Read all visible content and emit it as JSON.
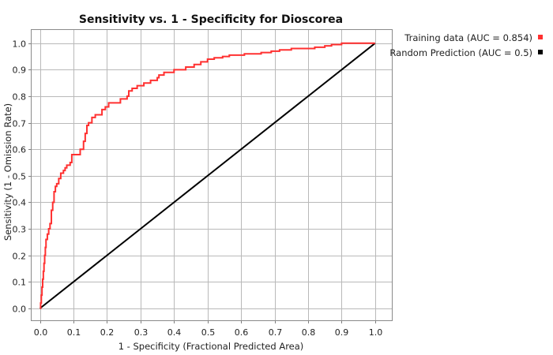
{
  "chart_data": {
    "type": "line",
    "title": "Sensitivity vs. 1 - Specificity for Dioscorea",
    "xlabel": "1 - Specificity  (Fractional Predicted Area)",
    "ylabel": "Sensitivity  (1 - Omission Rate)",
    "xlim": [
      -0.025,
      1.05
    ],
    "ylim": [
      -0.045,
      1.05
    ],
    "x_ticks": [
      0.0,
      0.1,
      0.2,
      0.3,
      0.4,
      0.5,
      0.6,
      0.7,
      0.8,
      0.9,
      1.0
    ],
    "y_ticks": [
      0.0,
      0.1,
      0.2,
      0.3,
      0.4,
      0.5,
      0.6,
      0.7,
      0.8,
      0.9,
      1.0
    ],
    "x_tick_labels": [
      "0.0",
      "0.1",
      "0.2",
      "0.3",
      "0.4",
      "0.5",
      "0.6",
      "0.7",
      "0.8",
      "0.9",
      "1.0"
    ],
    "y_tick_labels": [
      "0.0",
      "0.1",
      "0.2",
      "0.3",
      "0.4",
      "0.5",
      "0.6",
      "0.7",
      "0.8",
      "0.9",
      "1.0"
    ],
    "grid": true,
    "legend_position": "top-right, outside plot",
    "series": [
      {
        "name": "Training data (AUC = 0.854)",
        "color": "#ff3030",
        "step": true,
        "points": [
          [
            0.0,
            0.0
          ],
          [
            0.002,
            0.02
          ],
          [
            0.004,
            0.05
          ],
          [
            0.006,
            0.08
          ],
          [
            0.008,
            0.11
          ],
          [
            0.01,
            0.14
          ],
          [
            0.012,
            0.17
          ],
          [
            0.014,
            0.2
          ],
          [
            0.016,
            0.23
          ],
          [
            0.018,
            0.26
          ],
          [
            0.022,
            0.28
          ],
          [
            0.026,
            0.3
          ],
          [
            0.03,
            0.32
          ],
          [
            0.034,
            0.37
          ],
          [
            0.038,
            0.4
          ],
          [
            0.042,
            0.44
          ],
          [
            0.046,
            0.46
          ],
          [
            0.05,
            0.47
          ],
          [
            0.056,
            0.49
          ],
          [
            0.062,
            0.51
          ],
          [
            0.07,
            0.52
          ],
          [
            0.075,
            0.53
          ],
          [
            0.08,
            0.54
          ],
          [
            0.09,
            0.55
          ],
          [
            0.095,
            0.58
          ],
          [
            0.11,
            0.58
          ],
          [
            0.12,
            0.6
          ],
          [
            0.13,
            0.63
          ],
          [
            0.135,
            0.66
          ],
          [
            0.14,
            0.69
          ],
          [
            0.145,
            0.7
          ],
          [
            0.155,
            0.72
          ],
          [
            0.165,
            0.73
          ],
          [
            0.18,
            0.73
          ],
          [
            0.185,
            0.75
          ],
          [
            0.195,
            0.76
          ],
          [
            0.205,
            0.775
          ],
          [
            0.235,
            0.775
          ],
          [
            0.24,
            0.79
          ],
          [
            0.26,
            0.8
          ],
          [
            0.265,
            0.82
          ],
          [
            0.275,
            0.83
          ],
          [
            0.29,
            0.84
          ],
          [
            0.31,
            0.85
          ],
          [
            0.325,
            0.85
          ],
          [
            0.33,
            0.86
          ],
          [
            0.35,
            0.87
          ],
          [
            0.355,
            0.88
          ],
          [
            0.37,
            0.89
          ],
          [
            0.395,
            0.89
          ],
          [
            0.4,
            0.9
          ],
          [
            0.43,
            0.9
          ],
          [
            0.435,
            0.91
          ],
          [
            0.46,
            0.92
          ],
          [
            0.48,
            0.93
          ],
          [
            0.5,
            0.94
          ],
          [
            0.52,
            0.945
          ],
          [
            0.545,
            0.95
          ],
          [
            0.565,
            0.955
          ],
          [
            0.61,
            0.96
          ],
          [
            0.66,
            0.965
          ],
          [
            0.69,
            0.97
          ],
          [
            0.715,
            0.975
          ],
          [
            0.75,
            0.98
          ],
          [
            0.82,
            0.985
          ],
          [
            0.85,
            0.99
          ],
          [
            0.87,
            0.995
          ],
          [
            0.9,
            1.0
          ],
          [
            1.0,
            1.0
          ]
        ]
      },
      {
        "name": "Random Prediction (AUC = 0.5)",
        "color": "#000000",
        "step": false,
        "points": [
          [
            0.0,
            0.0
          ],
          [
            1.0,
            1.0
          ]
        ]
      }
    ]
  }
}
